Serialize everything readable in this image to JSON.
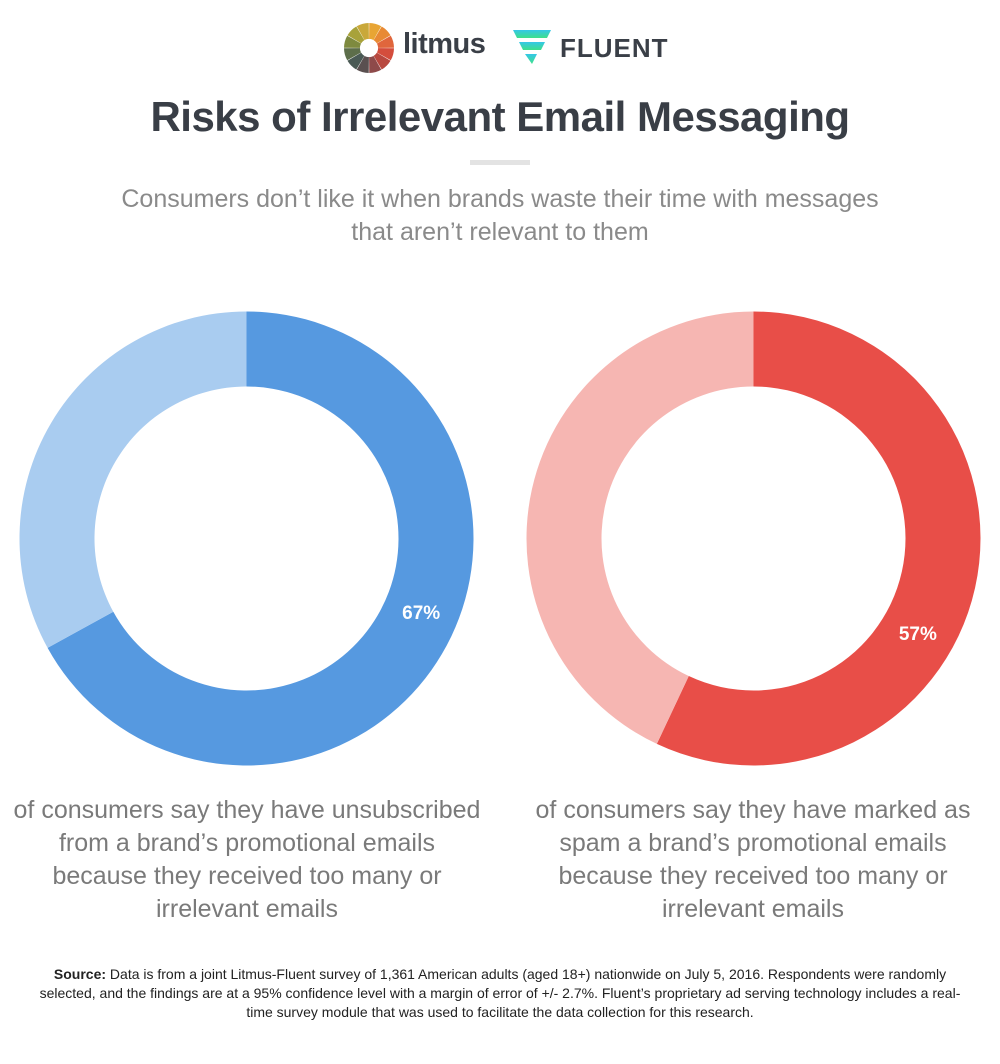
{
  "brand": {
    "litmus": "litmus",
    "fluent": "FLUENT"
  },
  "title": "Risks of Irrelevant Email Messaging",
  "subtitle": "Consumers don’t like it when brands waste their time with messages that aren’t relevant to them",
  "chart_data": [
    {
      "type": "pie",
      "slices": [
        {
          "value": 67,
          "color": "#5699e0"
        },
        {
          "value": 33,
          "color": "#a9ccf0"
        }
      ],
      "data_label": "67%",
      "caption": "of consumers say they have unsubscribed from a brand’s promotional emails because they received too many or irrelevant emails"
    },
    {
      "type": "pie",
      "slices": [
        {
          "value": 57,
          "color": "#e84e48"
        },
        {
          "value": 43,
          "color": "#f6b6b2"
        }
      ],
      "data_label": "57%",
      "caption": "of consumers say they have marked as spam a brand’s promotional emails because they received too many or irrelevant emails"
    }
  ],
  "source": {
    "label": "Source:",
    "text": "Data is from a joint Litmus-Fluent survey of 1,361 American adults (aged 18+) nationwide on July 5, 2016. Respondents were randomly selected, and the findings are at a 95% confidence level with a margin of error of +/- 2.7%. Fluent’s proprietary ad serving technology includes a real-time survey module that was used to facilitate the data collection for this research."
  }
}
